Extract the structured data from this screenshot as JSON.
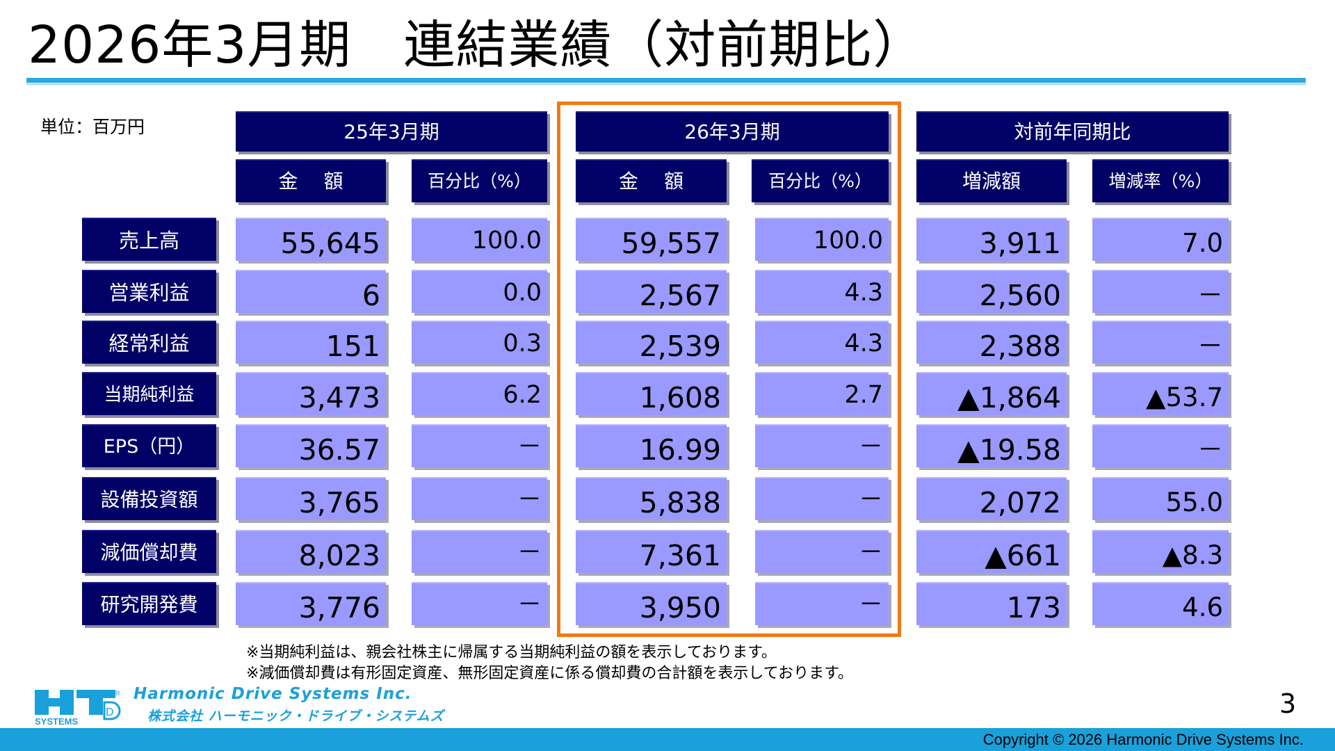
{
  "title": "2026年3月期　連結業績（対前期比）",
  "unit": "単位：百万円",
  "headers": {
    "prev": "25年3月期",
    "curr": "26年3月期",
    "yoy": "対前年同期比",
    "amount": "金　 額",
    "ratio": "百分比（%）",
    "change": "増減額",
    "change_rate": "増減率（%）"
  },
  "rows": [
    {
      "label": "売上高",
      "prev_amount": "55,645",
      "prev_ratio": "100.0",
      "curr_amount": "59,557",
      "curr_ratio": "100.0",
      "change": "3,911",
      "change_rate": "7.0"
    },
    {
      "label": "営業利益",
      "prev_amount": "6",
      "prev_ratio": "0.0",
      "curr_amount": "2,567",
      "curr_ratio": "4.3",
      "change": "2,560",
      "change_rate": "－"
    },
    {
      "label": "経常利益",
      "prev_amount": "151",
      "prev_ratio": "0.3",
      "curr_amount": "2,539",
      "curr_ratio": "4.3",
      "change": "2,388",
      "change_rate": "－"
    },
    {
      "label": "当期純利益",
      "prev_amount": "3,473",
      "prev_ratio": "6.2",
      "curr_amount": "1,608",
      "curr_ratio": "2.7",
      "change": "▲1,864",
      "change_rate": "▲53.7"
    },
    {
      "label": "EPS（円）",
      "prev_amount": "36.57",
      "prev_ratio": "－",
      "curr_amount": "16.99",
      "curr_ratio": "－",
      "change": "▲19.58",
      "change_rate": "－"
    },
    {
      "label": "設備投資額",
      "prev_amount": "3,765",
      "prev_ratio": "－",
      "curr_amount": "5,838",
      "curr_ratio": "－",
      "change": "2,072",
      "change_rate": "55.0"
    },
    {
      "label": "減価償却費",
      "prev_amount": "8,023",
      "prev_ratio": "－",
      "curr_amount": "7,361",
      "curr_ratio": "－",
      "change": "▲661",
      "change_rate": "▲8.3"
    },
    {
      "label": "研究開発費",
      "prev_amount": "3,776",
      "prev_ratio": "－",
      "curr_amount": "3,950",
      "curr_ratio": "－",
      "change": "173",
      "change_rate": "4.6"
    }
  ],
  "notes": [
    "※当期純利益は、親会社株主に帰属する当期純利益の額を表示しております。",
    "※減価償却費は有形固定資産、無形固定資産に係る償却費の合計額を表示しております。"
  ],
  "logo": {
    "en": "Harmonic Drive Systems Inc.",
    "jp": "株式会社 ハーモニック・ドライブ・システムズ",
    "mark_text": "SYSTEMS",
    "mark_r": "R",
    "mark_d": "D"
  },
  "page_number": "3",
  "copyright": "Copyright © 2026 Harmonic Drive Systems Inc.",
  "colors": {
    "header_bg": "#000066",
    "cell_bg": "#9999ff",
    "highlight_border": "#f07a14",
    "accent": "#1aa0da"
  }
}
